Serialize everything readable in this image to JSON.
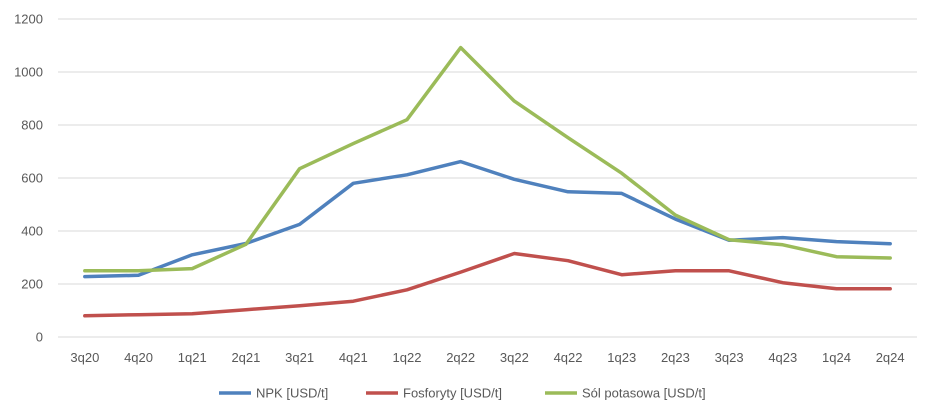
{
  "chart_data": {
    "type": "line",
    "categories": [
      "3q20",
      "4q20",
      "1q21",
      "2q21",
      "3q21",
      "4q21",
      "1q22",
      "2q22",
      "3q22",
      "4q22",
      "1q23",
      "2q23",
      "3q23",
      "4q23",
      "1q24",
      "2q24"
    ],
    "series": [
      {
        "name": "NPK  [USD/t]",
        "color": "#4f81bd",
        "values": [
          228,
          233,
          310,
          353,
          425,
          580,
          612,
          662,
          595,
          548,
          542,
          445,
          365,
          375,
          360,
          352
        ]
      },
      {
        "name": "Fosforyty [USD/t]",
        "color": "#c0504d",
        "values": [
          80,
          84,
          88,
          103,
          118,
          135,
          178,
          245,
          315,
          288,
          235,
          250,
          250,
          205,
          182,
          182
        ]
      },
      {
        "name": "Sól potasowa [USD/t]",
        "color": "#9bbb59",
        "values": [
          250,
          250,
          258,
          350,
          635,
          730,
          820,
          1092,
          890,
          752,
          618,
          460,
          367,
          348,
          303,
          298
        ]
      }
    ],
    "title": "",
    "xlabel": "",
    "ylabel": "",
    "ylim": [
      0,
      1200
    ],
    "yticks": [
      "0",
      "200",
      "400",
      "600",
      "800",
      "1000",
      "1200"
    ],
    "grid": true,
    "legend_position": "bottom"
  }
}
